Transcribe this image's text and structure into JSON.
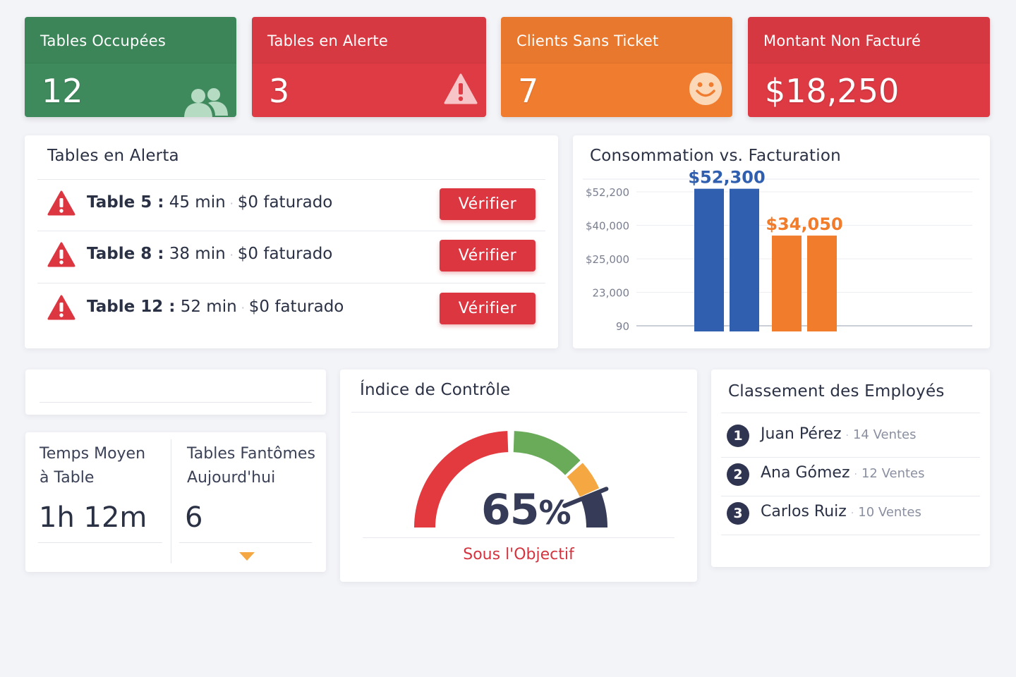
{
  "kpis": [
    {
      "label": "Tables Occupées",
      "value": "12",
      "icon": "users-icon",
      "color": "#3e8a5c"
    },
    {
      "label": "Tables en Alerte",
      "value": "3",
      "icon": "warning-icon",
      "color": "#de3b45"
    },
    {
      "label": "Clients Sans Ticket",
      "value": "7",
      "icon": "smiley-icon",
      "color": "#f07c30"
    },
    {
      "label": "Montant Non Facturé",
      "value": "$18,250",
      "color": "#dd3a44"
    }
  ],
  "alerts": {
    "title": "Tables en Alerta",
    "verify_label": "Vérifier",
    "rows": [
      {
        "table": "Table 5 :",
        "time": "45 min",
        "billed": "$0 faturado"
      },
      {
        "table": "Table 8 :",
        "time": "38 min",
        "billed": "$0 faturado"
      },
      {
        "table": "Table 12 :",
        "time": "52 min",
        "billed": "$0 faturado"
      }
    ]
  },
  "chart": {
    "title": "Consommation vs. Facturation"
  },
  "chart_data": {
    "type": "bar",
    "title": "Consommation vs. Facturation",
    "ytick_labels": [
      "$52,200",
      "$40,000",
      "$25,000",
      "23,000",
      "90"
    ],
    "series": [
      {
        "value_label": "$52,300",
        "values": [
          52300,
          52300
        ],
        "color": "#2f5fae"
      },
      {
        "value_label": "$34,050",
        "values": [
          34050,
          34050
        ],
        "color": "#f07c2c"
      }
    ]
  },
  "stats": {
    "avg_time_label": "Temps Moyen à Table",
    "avg_time_label_lines": [
      "Temps Moyen",
      "à Table"
    ],
    "avg_time_value": "1h 12m",
    "ghost_label_lines": [
      "Tables Fantômes",
      "Aujourd'hui"
    ],
    "ghost_value": "6"
  },
  "gauge": {
    "title": "Índice de Contrôle",
    "value_number": "65",
    "value_unit": "%",
    "percent": 65,
    "status": "Sous l'Objectif",
    "colors": {
      "red": "#e23a3f",
      "green": "#6aab5a",
      "orange": "#f5a742",
      "navy": "#363c57"
    }
  },
  "ranking": {
    "title": "Classement des Employés",
    "rows": [
      {
        "rank": "1",
        "name": "Juan Pérez",
        "sales": "14 Ventes"
      },
      {
        "rank": "2",
        "name": "Ana Gómez",
        "sales": "12 Ventes"
      },
      {
        "rank": "3",
        "name": "Carlos Ruiz",
        "sales": "10 Ventes"
      }
    ]
  }
}
